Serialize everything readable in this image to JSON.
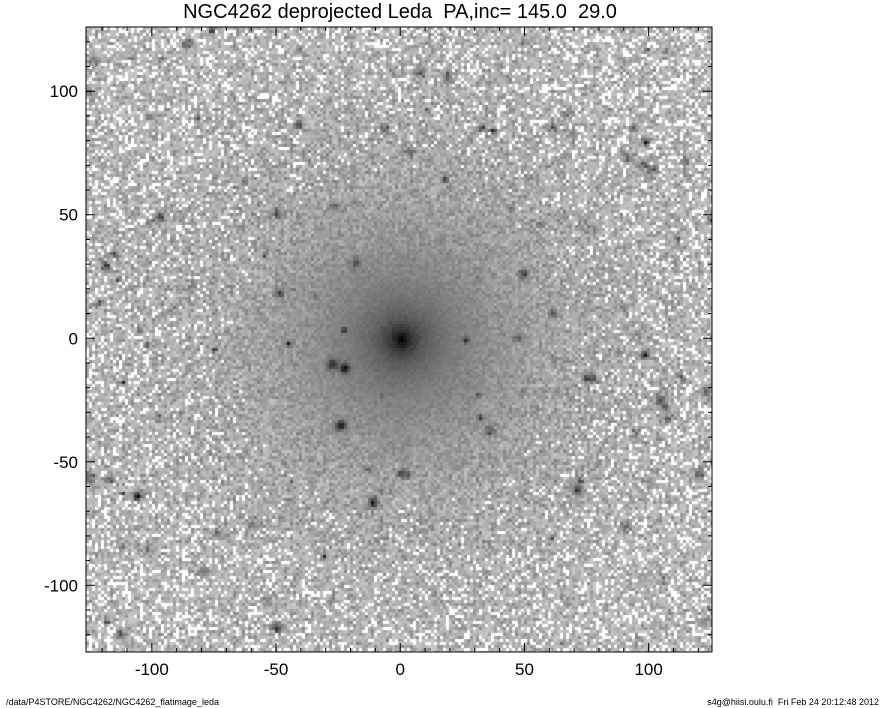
{
  "chart_data": {
    "type": "heatmap",
    "title": "NGC4262 deprojected Leda  PA,inc= 145.0  29.0",
    "xlabel": "",
    "ylabel": "",
    "xlim": [
      -126.5,
      125.5
    ],
    "ylim": [
      -127,
      126
    ],
    "x_ticks": [
      -100,
      -50,
      0,
      50,
      100
    ],
    "y_ticks": [
      -100,
      -50,
      0,
      50,
      100
    ],
    "minor_tick_step": 10,
    "colormap": "grayscale inverted",
    "center": [
      0,
      0
    ],
    "grid": false
  },
  "footer": {
    "path": "/data/P4STORE/NGC4262/NGC4262_flatimage_leda",
    "user_date": "s4g@hiisi.oulu.fi  Fri Feb 24 20:12:48 2012"
  }
}
